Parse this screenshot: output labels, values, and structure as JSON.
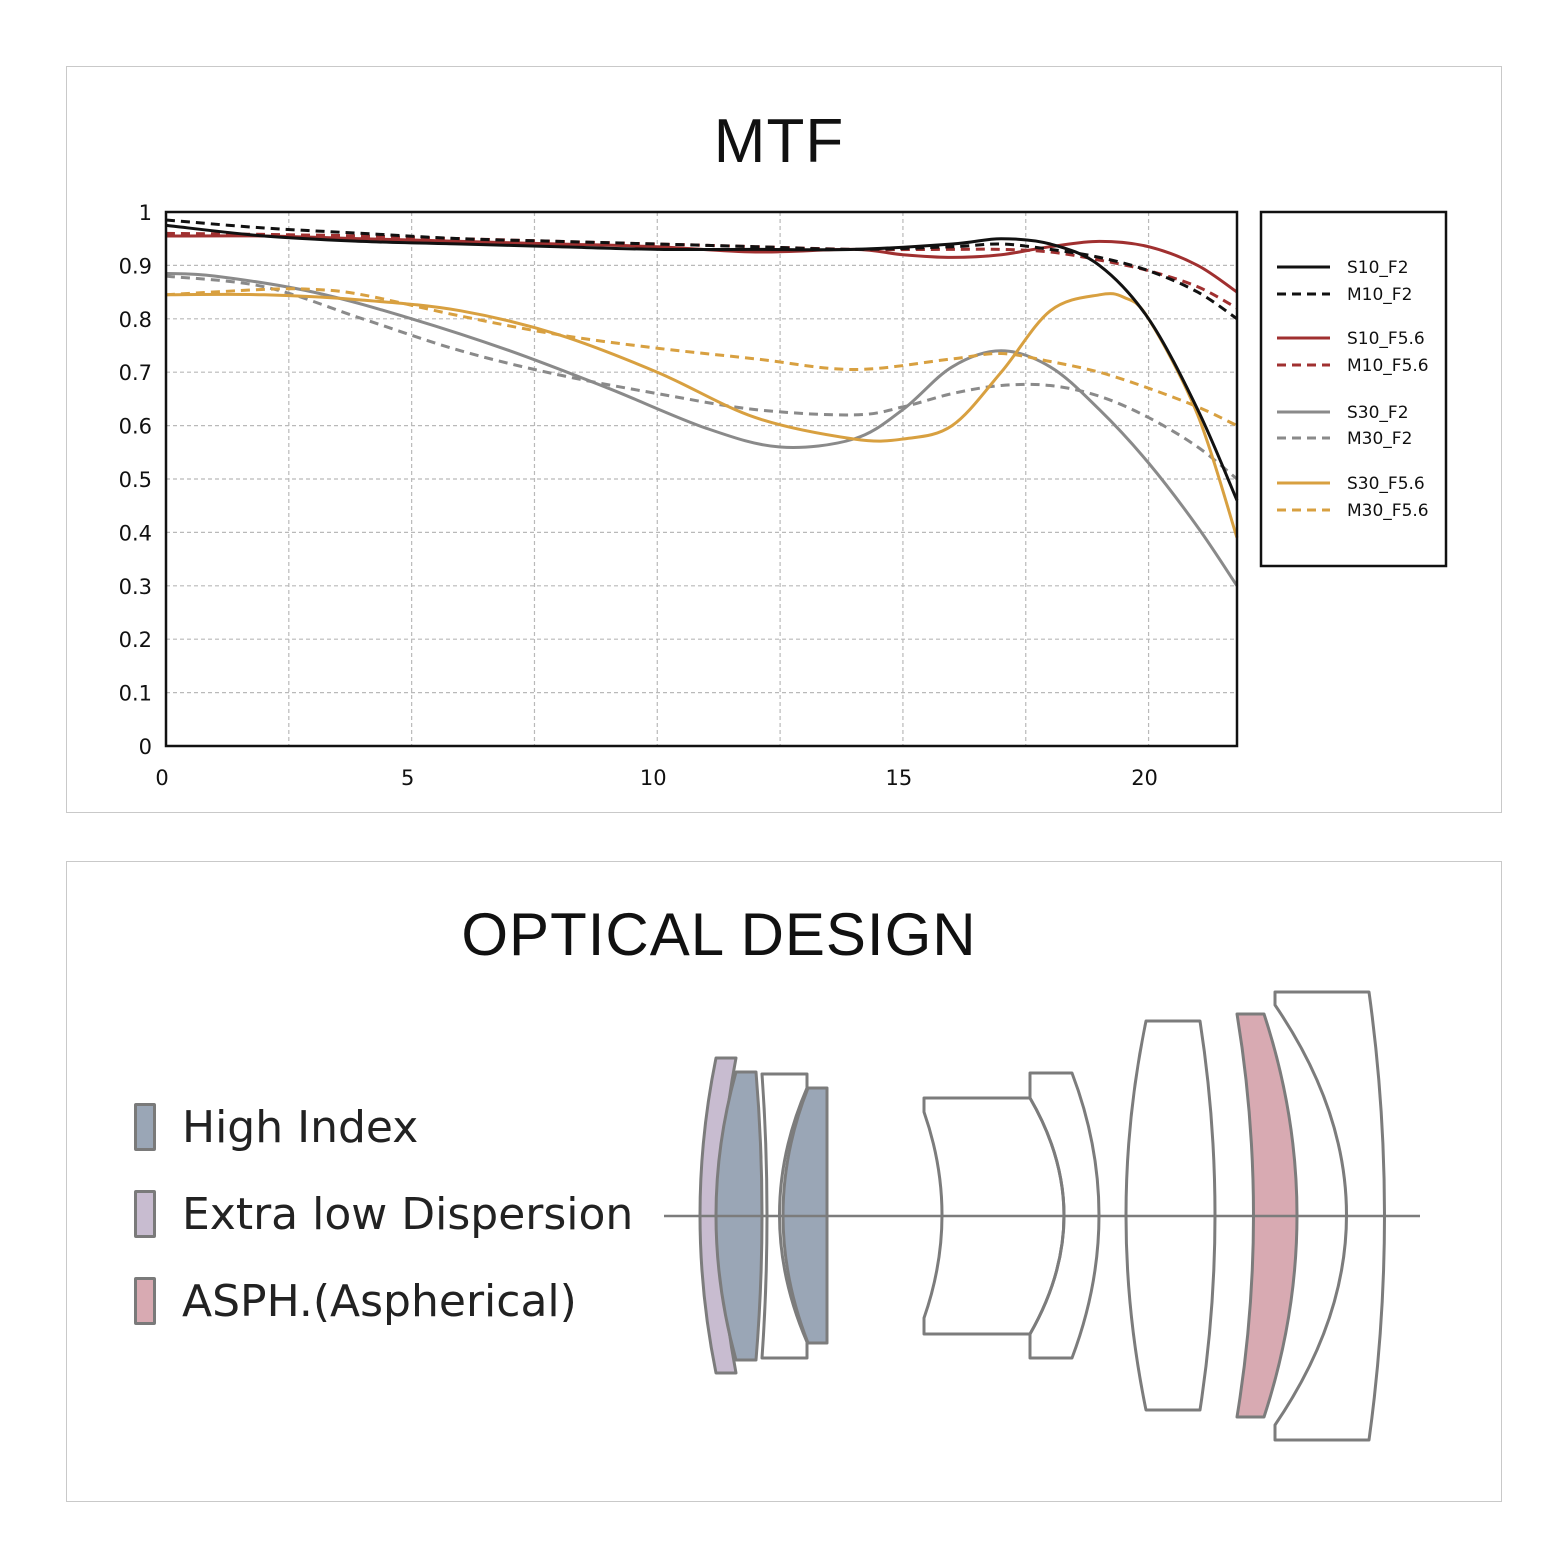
{
  "mtf": {
    "title": "MTF"
  },
  "optics": {
    "title": "OPTICAL DESIGN",
    "key": [
      {
        "label": "High Index",
        "color": "#9aa6b6"
      },
      {
        "label": "Extra low Dispersion",
        "color": "#c8bcd0"
      },
      {
        "label": "ASPH.(Aspherical)",
        "color": "#d8aab2"
      }
    ]
  },
  "chart_data": {
    "type": "line",
    "title": "MTF",
    "xlabel": "",
    "ylabel": "",
    "xlim": [
      0,
      21.8
    ],
    "ylim": [
      0,
      1
    ],
    "xticks": [
      0,
      5,
      10,
      15,
      20
    ],
    "yticks": [
      0,
      0.1,
      0.2,
      0.3,
      0.4,
      0.5,
      0.6,
      0.7,
      0.8,
      0.9,
      1
    ],
    "ytick_labels": [
      "0",
      "0.1",
      "0.2",
      "0.3",
      "0.4",
      "0.5",
      "0.6",
      "0.7",
      "0.8",
      "0.9",
      "1"
    ],
    "grid": true,
    "legend_position": "right",
    "series": [
      {
        "name": "S10_F2",
        "color": "#111111",
        "dash": false,
        "x": [
          0,
          2,
          4,
          6,
          8,
          10,
          12,
          14,
          16,
          17,
          18,
          19,
          20,
          21,
          21.8
        ],
        "y": [
          0.975,
          0.955,
          0.945,
          0.94,
          0.935,
          0.93,
          0.93,
          0.93,
          0.94,
          0.95,
          0.94,
          0.9,
          0.8,
          0.63,
          0.46
        ]
      },
      {
        "name": "M10_F2",
        "color": "#111111",
        "dash": true,
        "x": [
          0,
          2,
          4,
          6,
          8,
          10,
          12,
          14,
          16,
          17,
          18,
          19,
          20,
          21,
          21.8
        ],
        "y": [
          0.985,
          0.97,
          0.96,
          0.95,
          0.945,
          0.94,
          0.935,
          0.93,
          0.935,
          0.94,
          0.93,
          0.915,
          0.89,
          0.85,
          0.8
        ]
      },
      {
        "name": "S10_F5.6",
        "color": "#a03030",
        "dash": false,
        "x": [
          0,
          2,
          4,
          6,
          8,
          10,
          12,
          14,
          15,
          16,
          17,
          18,
          19,
          20,
          21,
          21.8
        ],
        "y": [
          0.955,
          0.955,
          0.95,
          0.945,
          0.94,
          0.935,
          0.925,
          0.93,
          0.92,
          0.915,
          0.92,
          0.935,
          0.945,
          0.935,
          0.9,
          0.85
        ]
      },
      {
        "name": "M10_F5.6",
        "color": "#a03030",
        "dash": true,
        "x": [
          0,
          2,
          4,
          6,
          8,
          10,
          12,
          14,
          16,
          17,
          18,
          19,
          20,
          21,
          21.8
        ],
        "y": [
          0.96,
          0.958,
          0.955,
          0.95,
          0.945,
          0.94,
          0.935,
          0.93,
          0.93,
          0.93,
          0.925,
          0.91,
          0.89,
          0.86,
          0.82
        ]
      },
      {
        "name": "S30_F2",
        "color": "#8a8a8a",
        "dash": false,
        "x": [
          0,
          1,
          3,
          5,
          7,
          9,
          11,
          12.5,
          14,
          15,
          16,
          17,
          18,
          19,
          20,
          21,
          21.8
        ],
        "y": [
          0.885,
          0.88,
          0.85,
          0.8,
          0.74,
          0.67,
          0.595,
          0.56,
          0.575,
          0.63,
          0.71,
          0.74,
          0.71,
          0.63,
          0.53,
          0.41,
          0.3
        ]
      },
      {
        "name": "M30_F2",
        "color": "#8a8a8a",
        "dash": true,
        "x": [
          0,
          2,
          4,
          6,
          8,
          10,
          12,
          14,
          15,
          16,
          17,
          18,
          19,
          20,
          21,
          21.8
        ],
        "y": [
          0.88,
          0.86,
          0.8,
          0.74,
          0.695,
          0.66,
          0.63,
          0.62,
          0.635,
          0.66,
          0.675,
          0.675,
          0.655,
          0.615,
          0.56,
          0.5
        ]
      },
      {
        "name": "S30_F5.6",
        "color": "#d8a040",
        "dash": false,
        "x": [
          0,
          2,
          4,
          6,
          8,
          10,
          12,
          14,
          15,
          16,
          17,
          18,
          19,
          19.5,
          20,
          21,
          21.8
        ],
        "y": [
          0.845,
          0.845,
          0.835,
          0.815,
          0.77,
          0.7,
          0.615,
          0.575,
          0.575,
          0.6,
          0.7,
          0.815,
          0.845,
          0.84,
          0.8,
          0.62,
          0.39
        ]
      },
      {
        "name": "M30_F5.6",
        "color": "#d8a040",
        "dash": true,
        "x": [
          0,
          2,
          3,
          4,
          6,
          8,
          10,
          12,
          14,
          16,
          17,
          18,
          19,
          20,
          21,
          21.8
        ],
        "y": [
          0.845,
          0.855,
          0.855,
          0.845,
          0.805,
          0.77,
          0.745,
          0.725,
          0.705,
          0.725,
          0.735,
          0.72,
          0.7,
          0.67,
          0.635,
          0.6
        ]
      }
    ]
  }
}
